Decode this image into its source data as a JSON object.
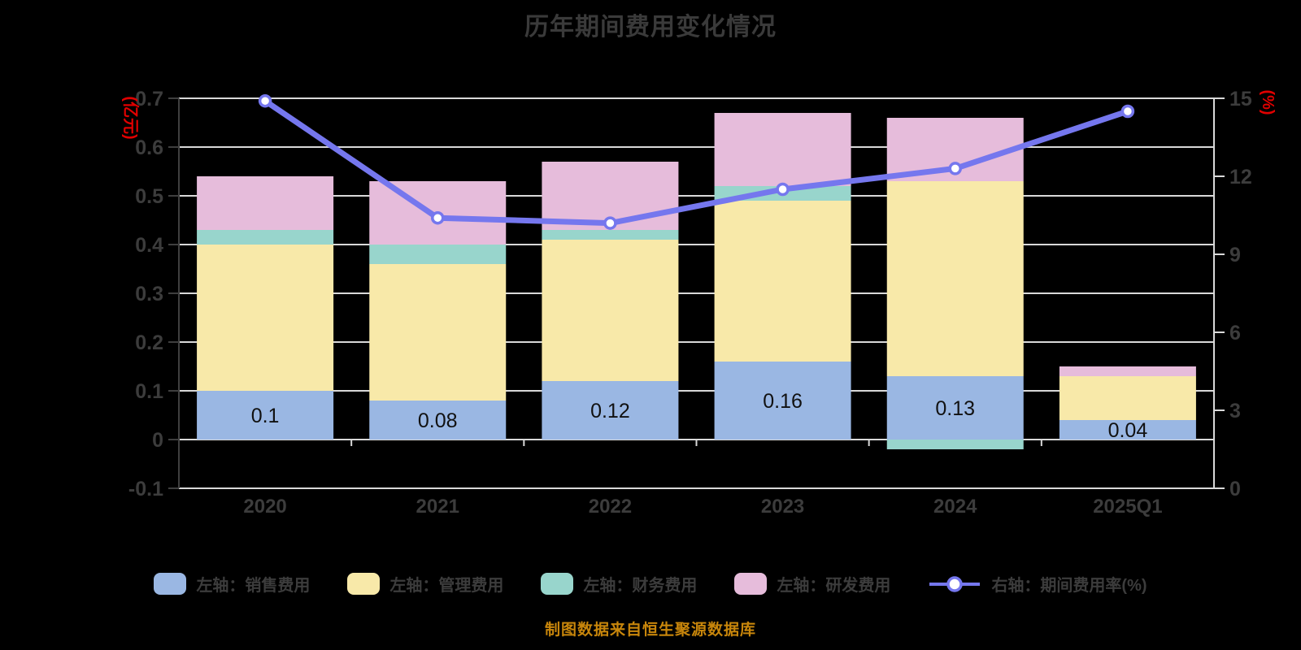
{
  "title": "历年期间费用变化情况",
  "footer": "制图数据来自恒生聚源数据库",
  "colors": {
    "background": "#000000",
    "title_text": "#3a3a3a",
    "axis_text": "#3c3c3c",
    "grid_line": "#d9d9d9",
    "dark_axis_line": "#3f3f3f",
    "unit_label_red": "#e00000",
    "footer_orange": "#c8860b",
    "bar_value_label": "#111111",
    "marker_fill": "#ffffff"
  },
  "chart_data": {
    "type": "bar",
    "subtype": "stacked-bars-with-line-overlay",
    "categories": [
      "2020",
      "2021",
      "2022",
      "2023",
      "2024",
      "2025Q1"
    ],
    "bar_series": [
      {
        "name": "左轴：销售费用",
        "color": "#9ab7e3",
        "values": [
          0.1,
          0.08,
          0.12,
          0.16,
          0.13,
          0.04
        ],
        "labels": [
          "0.1",
          "0.08",
          "0.12",
          "0.16",
          "0.13",
          "0.04"
        ]
      },
      {
        "name": "左轴：管理费用",
        "color": "#f8e9a9",
        "values": [
          0.3,
          0.28,
          0.29,
          0.33,
          0.4,
          0.09
        ]
      },
      {
        "name": "左轴：财务费用",
        "color": "#98d5cc",
        "values": [
          0.03,
          0.04,
          0.02,
          0.03,
          -0.02,
          0.0
        ]
      },
      {
        "name": "左轴：研发费用",
        "color": "#e6bcdb",
        "values": [
          0.11,
          0.13,
          0.14,
          0.15,
          0.13,
          0.02
        ]
      }
    ],
    "line_series": {
      "name": "右轴：期间费用率(%)",
      "color": "#7577ee",
      "values": [
        14.9,
        10.4,
        10.2,
        11.5,
        12.3,
        14.5
      ]
    },
    "left_axis": {
      "unit": "(亿元)",
      "min": -0.1,
      "max": 0.7,
      "ticks": [
        -0.1,
        0,
        0.1,
        0.2,
        0.3,
        0.4,
        0.5,
        0.6,
        0.7
      ]
    },
    "right_axis": {
      "unit": "(%)",
      "min": 0,
      "max": 15,
      "ticks": [
        0,
        3,
        6,
        9,
        12,
        15
      ]
    },
    "grid": true,
    "legend_position": "bottom"
  }
}
